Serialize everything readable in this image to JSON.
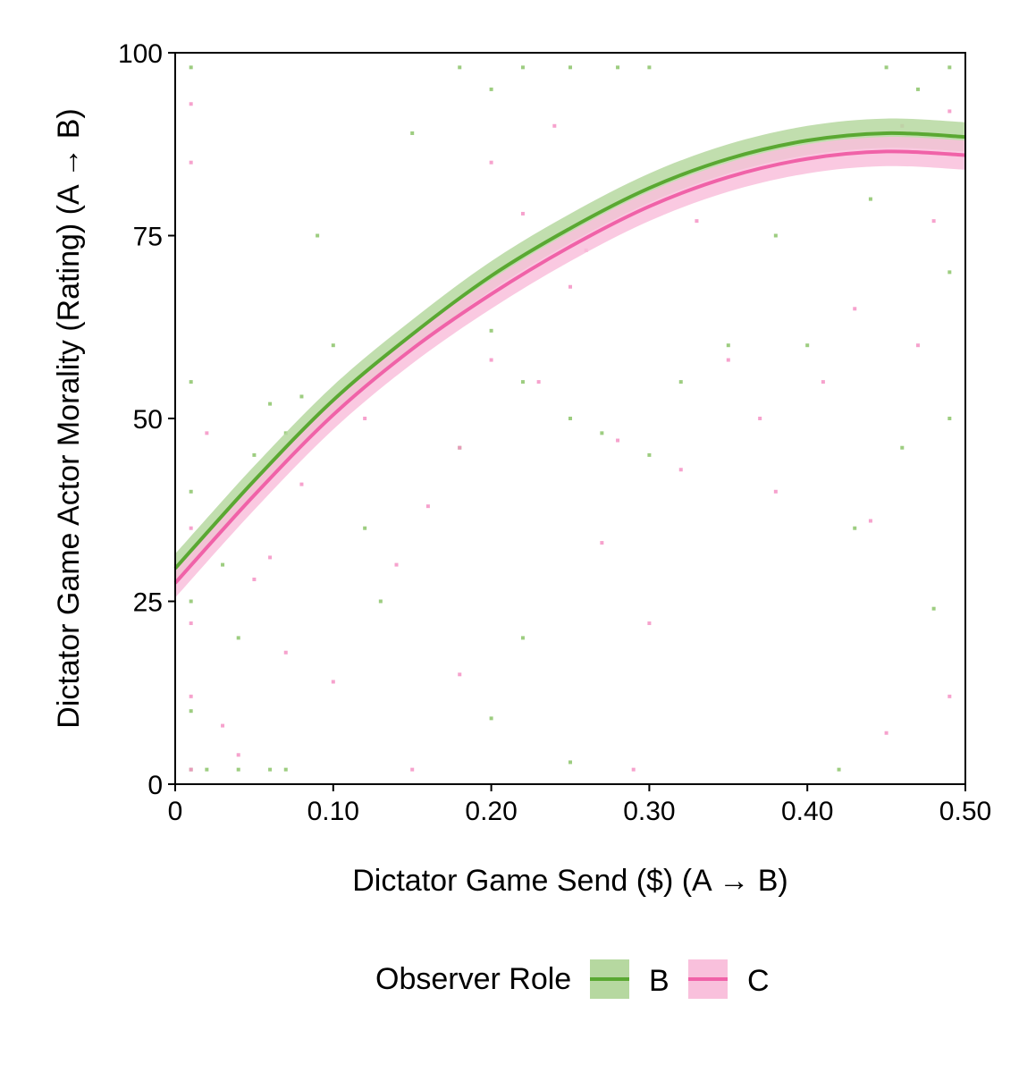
{
  "chart_data": {
    "type": "scatter",
    "title": "",
    "xlabel": "Dictator Game Send ($) (A → B)",
    "ylabel": "Dictator Game Actor Morality (Rating) (A → B)",
    "xlim": [
      0,
      0.5
    ],
    "ylim": [
      0,
      100
    ],
    "x_ticks": [
      0,
      0.1,
      0.2,
      0.3,
      0.4,
      0.5
    ],
    "x_tick_labels": [
      "0",
      "0.10",
      "0.20",
      "0.30",
      "0.40",
      "0.50"
    ],
    "y_ticks": [
      0,
      25,
      50,
      75,
      100
    ],
    "y_tick_labels": [
      "0",
      "25",
      "50",
      "75",
      "100"
    ],
    "grid": false,
    "legend": {
      "title": "Observer Role",
      "position": "bottom-center"
    },
    "series": [
      {
        "name": "B",
        "color": "#5aa832",
        "band_color": "#b6d8a0",
        "point_color": "#8cc46a",
        "fit": {
          "x": [
            0,
            0.05,
            0.1,
            0.15,
            0.2,
            0.25,
            0.3,
            0.35,
            0.4,
            0.45,
            0.5
          ],
          "y": [
            29.5,
            41.5,
            52.5,
            61.5,
            69.5,
            76.0,
            81.5,
            85.5,
            88.0,
            89.0,
            88.5
          ],
          "ci_halfwidth": 2.0
        },
        "points": [
          [
            0.01,
            2
          ],
          [
            0.01,
            10
          ],
          [
            0.01,
            25
          ],
          [
            0.01,
            40
          ],
          [
            0.01,
            55
          ],
          [
            0.01,
            98
          ],
          [
            0.02,
            2
          ],
          [
            0.04,
            2
          ],
          [
            0.06,
            2
          ],
          [
            0.07,
            2
          ],
          [
            0.03,
            30
          ],
          [
            0.04,
            20
          ],
          [
            0.05,
            45
          ],
          [
            0.06,
            52
          ],
          [
            0.07,
            48
          ],
          [
            0.08,
            53
          ],
          [
            0.09,
            75
          ],
          [
            0.1,
            60
          ],
          [
            0.12,
            35
          ],
          [
            0.13,
            25
          ],
          [
            0.15,
            89
          ],
          [
            0.18,
            98
          ],
          [
            0.2,
            95
          ],
          [
            0.22,
            98
          ],
          [
            0.25,
            98
          ],
          [
            0.28,
            98
          ],
          [
            0.3,
            98
          ],
          [
            0.18,
            46
          ],
          [
            0.2,
            62
          ],
          [
            0.22,
            55
          ],
          [
            0.25,
            50
          ],
          [
            0.27,
            48
          ],
          [
            0.3,
            45
          ],
          [
            0.32,
            55
          ],
          [
            0.2,
            9
          ],
          [
            0.22,
            20
          ],
          [
            0.25,
            3
          ],
          [
            0.35,
            60
          ],
          [
            0.38,
            75
          ],
          [
            0.4,
            60
          ],
          [
            0.42,
            2
          ],
          [
            0.45,
            98
          ],
          [
            0.47,
            95
          ],
          [
            0.49,
            98
          ],
          [
            0.49,
            70
          ],
          [
            0.49,
            50
          ],
          [
            0.48,
            24
          ],
          [
            0.46,
            46
          ],
          [
            0.43,
            35
          ],
          [
            0.44,
            80
          ]
        ]
      },
      {
        "name": "C",
        "color": "#f062a8",
        "band_color": "#f9c0dc",
        "point_color": "#f492c4",
        "fit": {
          "x": [
            0,
            0.05,
            0.1,
            0.15,
            0.2,
            0.25,
            0.3,
            0.35,
            0.4,
            0.45,
            0.5
          ],
          "y": [
            27.5,
            39.5,
            50.5,
            59.5,
            67.0,
            73.5,
            79.0,
            83.0,
            85.5,
            86.5,
            86.0
          ],
          "ci_halfwidth": 2.0
        },
        "points": [
          [
            0.01,
            2
          ],
          [
            0.01,
            12
          ],
          [
            0.01,
            22
          ],
          [
            0.01,
            35
          ],
          [
            0.01,
            85
          ],
          [
            0.01,
            93
          ],
          [
            0.02,
            48
          ],
          [
            0.03,
            8
          ],
          [
            0.04,
            4
          ],
          [
            0.05,
            28
          ],
          [
            0.06,
            31
          ],
          [
            0.07,
            18
          ],
          [
            0.08,
            41
          ],
          [
            0.1,
            14
          ],
          [
            0.12,
            50
          ],
          [
            0.14,
            30
          ],
          [
            0.16,
            38
          ],
          [
            0.18,
            46
          ],
          [
            0.2,
            85
          ],
          [
            0.22,
            78
          ],
          [
            0.24,
            90
          ],
          [
            0.26,
            73
          ],
          [
            0.28,
            47
          ],
          [
            0.29,
            2
          ],
          [
            0.3,
            22
          ],
          [
            0.32,
            43
          ],
          [
            0.35,
            58
          ],
          [
            0.38,
            40
          ],
          [
            0.41,
            55
          ],
          [
            0.43,
            65
          ],
          [
            0.44,
            36
          ],
          [
            0.45,
            7
          ],
          [
            0.46,
            90
          ],
          [
            0.47,
            60
          ],
          [
            0.49,
            12
          ],
          [
            0.49,
            92
          ],
          [
            0.48,
            77
          ],
          [
            0.2,
            58
          ],
          [
            0.23,
            55
          ],
          [
            0.25,
            68
          ],
          [
            0.27,
            33
          ],
          [
            0.15,
            2
          ],
          [
            0.18,
            15
          ],
          [
            0.33,
            77
          ],
          [
            0.37,
            50
          ],
          [
            0.4,
            88
          ]
        ]
      }
    ]
  }
}
